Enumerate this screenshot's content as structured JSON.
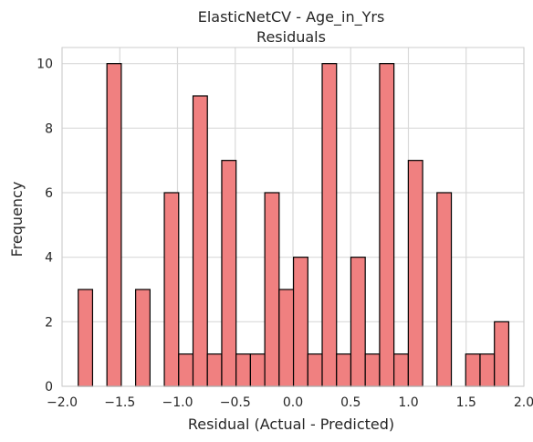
{
  "chart_data": {
    "type": "bar",
    "subtype": "histogram",
    "title": "ElasticNetCV - Age_in_Yrs",
    "subtitle": "Residuals",
    "xlabel": "Residual (Actual - Predicted)",
    "ylabel": "Frequency",
    "xlim": [
      -2.0,
      2.0
    ],
    "ylim": [
      0,
      10.5
    ],
    "xticks": [
      -2.0,
      -1.5,
      -1.0,
      -0.5,
      0.0,
      0.5,
      1.0,
      1.5,
      2.0
    ],
    "xtick_labels": [
      "−2.0",
      "−1.5",
      "−1.0",
      "−0.5",
      "0.0",
      "0.5",
      "1.0",
      "1.5",
      "2.0"
    ],
    "yticks": [
      0,
      2,
      4,
      6,
      8,
      10
    ],
    "ytick_labels": [
      "0",
      "2",
      "4",
      "6",
      "8",
      "10"
    ],
    "bin_start": -1.86,
    "bin_width": 0.1243,
    "counts": [
      3,
      0,
      10,
      0,
      3,
      0,
      6,
      1,
      9,
      1,
      7,
      1,
      1,
      6,
      3,
      4,
      1,
      10,
      1,
      4,
      1,
      10,
      1,
      7,
      0,
      6,
      0,
      1,
      1,
      2
    ],
    "grid": true,
    "bar_color": "#f08080",
    "edge_color": "#000000",
    "grid_color": "#d9d9d9",
    "text_color": "#262626"
  }
}
